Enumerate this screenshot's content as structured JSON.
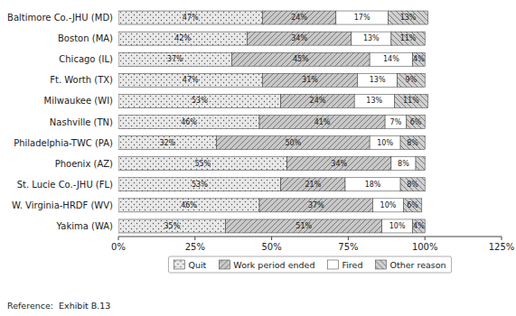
{
  "chart_data": {
    "type": "bar",
    "orientation": "horizontal",
    "stacked": true,
    "data_labels": true,
    "grid": false,
    "legend": "bottom",
    "categories": [
      "Baltimore Co.-JHU (MD)",
      "Boston (MA)",
      "Chicago (IL)",
      "Ft. Worth (TX)",
      "Milwaukee (WI)",
      "Nashville (TN)",
      "Philadelphia-TWC (PA)",
      "Phoenix (AZ)",
      "St. Lucie Co.-JHU (FL)",
      "W. Virginia-HRDF (WV)",
      "Yakima (WA)"
    ],
    "series": [
      {
        "name": "Quit",
        "color": "#e8e8e8",
        "values": [
          47,
          42,
          37,
          47,
          53,
          46,
          32,
          55,
          53,
          46,
          35
        ],
        "value_labels": [
          "47%",
          "42%",
          "37%",
          "47%",
          "53%",
          "46%",
          "32%",
          "55%",
          "53%",
          "46%",
          "35%"
        ]
      },
      {
        "name": "Work period ended",
        "color": "#c8c8c8",
        "values": [
          24,
          34,
          45,
          31,
          24,
          41,
          50,
          34,
          21,
          37,
          51
        ],
        "value_labels": [
          "24%",
          "34%",
          "45%",
          "31%",
          "24%",
          "41%",
          "50%",
          "34%",
          "21%",
          "37%",
          "51%"
        ]
      },
      {
        "name": "Fired",
        "color": "#ffffff",
        "values": [
          17,
          13,
          14,
          13,
          13,
          7,
          10,
          8,
          18,
          10,
          10
        ],
        "value_labels": [
          "17%",
          "13%",
          "14%",
          "13%",
          "13%",
          "7%",
          "10%",
          "8%",
          "18%",
          "10%",
          "10%"
        ]
      },
      {
        "name": "Other reason",
        "color": "#d0d0d0",
        "values": [
          13,
          11,
          4,
          9,
          11,
          6,
          8,
          3,
          8,
          6,
          4
        ],
        "value_labels": [
          "13%",
          "11%",
          "4%",
          "9%",
          "11%",
          "6%",
          "8%",
          null,
          "8%",
          "6%",
          "4%"
        ]
      }
    ],
    "xlim": [
      0,
      125
    ],
    "xticks": [
      {
        "value": 0,
        "label": "0%"
      },
      {
        "value": 25,
        "label": "25%"
      },
      {
        "value": 50,
        "label": "50%"
      },
      {
        "value": 75,
        "label": "75%"
      },
      {
        "value": 100,
        "label": "100%"
      },
      {
        "value": 125,
        "label": "125%"
      }
    ],
    "annotations": [
      "Reference:  Exhibit B.13"
    ]
  }
}
